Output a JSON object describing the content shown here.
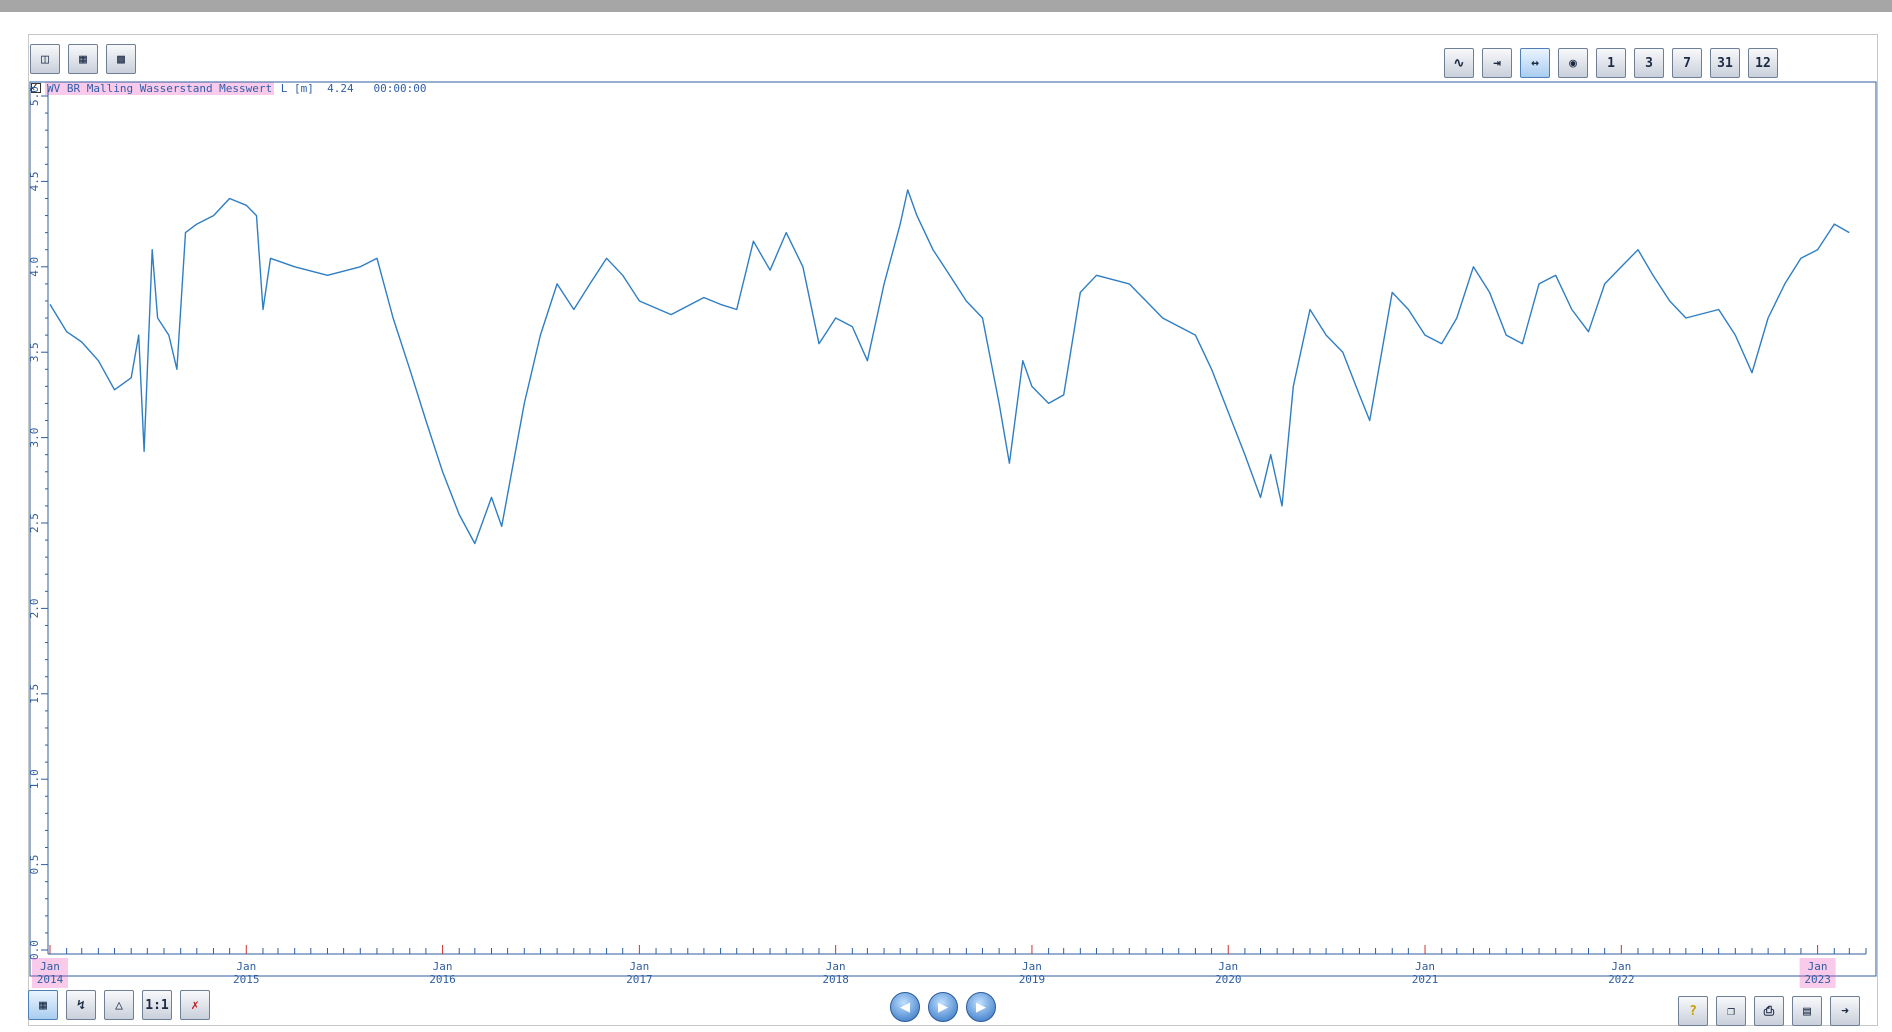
{
  "window": {
    "accent": "#2f7ec3"
  },
  "legend": {
    "checked": true,
    "series_label": "WV BR Malling Wasserstand Messwert",
    "unit": "L [m]",
    "value": "4.24",
    "time": "00:00:00"
  },
  "toolbar_top_left": [
    {
      "icon": "map-icon",
      "label": ""
    },
    {
      "icon": "chart-table-icon",
      "label": ""
    },
    {
      "icon": "chart-export-icon",
      "label": ""
    }
  ],
  "toolbar_top_right": [
    {
      "icon": "curve-icon",
      "label": ""
    },
    {
      "icon": "fit-width-icon",
      "label": ""
    },
    {
      "icon": "fit-all-icon",
      "label": ""
    },
    {
      "icon": "globe-icon",
      "label": ""
    },
    {
      "icon": "range-1-icon",
      "label": "1"
    },
    {
      "icon": "range-3-icon",
      "label": "3"
    },
    {
      "icon": "range-7-icon",
      "label": "7"
    },
    {
      "icon": "range-31-icon",
      "label": "31"
    },
    {
      "icon": "range-12-icon",
      "label": "12"
    }
  ],
  "toolbar_bottom_left": [
    {
      "icon": "grid-icon",
      "label": ""
    },
    {
      "icon": "cursor-icon",
      "label": ""
    },
    {
      "icon": "triangle-icon",
      "label": ""
    },
    {
      "icon": "scale-1to1-icon",
      "label": "1:1"
    },
    {
      "icon": "remove-series-icon",
      "label": ""
    }
  ],
  "nav_buttons": [
    {
      "icon": "prev-icon"
    },
    {
      "icon": "play-icon"
    },
    {
      "icon": "next-icon"
    }
  ],
  "toolbar_bottom_right": [
    {
      "icon": "help-icon",
      "label": "?"
    },
    {
      "icon": "copy-icon",
      "label": ""
    },
    {
      "icon": "print-icon",
      "label": ""
    },
    {
      "icon": "save-icon",
      "label": ""
    },
    {
      "icon": "exit-icon",
      "label": ""
    }
  ],
  "chart_data": {
    "type": "line",
    "title": "",
    "xlabel": "",
    "ylabel": "",
    "ylim": [
      0,
      5.0
    ],
    "xlim": [
      "2014-01-01",
      "2023-04-01"
    ],
    "y_ticks": [
      "0.0",
      "0.5",
      "1.0",
      "1.5",
      "2.0",
      "2.5",
      "3.0",
      "3.5",
      "4.0",
      "4.5",
      "5.0"
    ],
    "x_ticks": [
      {
        "month": "Jan",
        "year": "2014",
        "date": "2014-01-01"
      },
      {
        "month": "Jan",
        "year": "2015",
        "date": "2015-01-01"
      },
      {
        "month": "Jan",
        "year": "2016",
        "date": "2016-01-01"
      },
      {
        "month": "Jan",
        "year": "2017",
        "date": "2017-01-01"
      },
      {
        "month": "Jan",
        "year": "2018",
        "date": "2018-01-01"
      },
      {
        "month": "Jan",
        "year": "2019",
        "date": "2019-01-01"
      },
      {
        "month": "Jan",
        "year": "2020",
        "date": "2020-01-01"
      },
      {
        "month": "Jan",
        "year": "2021",
        "date": "2021-01-01"
      },
      {
        "month": "Jan",
        "year": "2022",
        "date": "2022-01-01"
      },
      {
        "month": "Jan",
        "year": "2023",
        "date": "2023-01-01"
      }
    ],
    "grid": false,
    "legend": "top-left",
    "series": [
      {
        "name": "WV BR Malling Wasserstand Messwert",
        "color": "#2f7ec3",
        "points": [
          [
            "2014-01-01",
            3.78
          ],
          [
            "2014-02-01",
            3.62
          ],
          [
            "2014-03-01",
            3.56
          ],
          [
            "2014-04-01",
            3.45
          ],
          [
            "2014-05-01",
            3.28
          ],
          [
            "2014-06-01",
            3.35
          ],
          [
            "2014-06-15",
            3.6
          ],
          [
            "2014-06-25",
            2.92
          ],
          [
            "2014-07-10",
            4.1
          ],
          [
            "2014-07-20",
            3.7
          ],
          [
            "2014-08-10",
            3.6
          ],
          [
            "2014-08-25",
            3.4
          ],
          [
            "2014-09-10",
            4.2
          ],
          [
            "2014-10-01",
            4.25
          ],
          [
            "2014-11-01",
            4.3
          ],
          [
            "2014-12-01",
            4.4
          ],
          [
            "2015-01-01",
            4.36
          ],
          [
            "2015-01-20",
            4.3
          ],
          [
            "2015-02-01",
            3.75
          ],
          [
            "2015-02-15",
            4.05
          ],
          [
            "2015-04-01",
            4.0
          ],
          [
            "2015-06-01",
            3.95
          ],
          [
            "2015-08-01",
            4.0
          ],
          [
            "2015-09-01",
            4.05
          ],
          [
            "2015-10-01",
            3.7
          ],
          [
            "2015-11-01",
            3.4
          ],
          [
            "2015-12-01",
            3.1
          ],
          [
            "2016-01-01",
            2.8
          ],
          [
            "2016-02-01",
            2.55
          ],
          [
            "2016-03-01",
            2.38
          ],
          [
            "2016-04-01",
            2.65
          ],
          [
            "2016-04-20",
            2.48
          ],
          [
            "2016-06-01",
            3.2
          ],
          [
            "2016-07-01",
            3.6
          ],
          [
            "2016-08-01",
            3.9
          ],
          [
            "2016-09-01",
            3.75
          ],
          [
            "2016-10-01",
            3.9
          ],
          [
            "2016-11-01",
            4.05
          ],
          [
            "2016-12-01",
            3.95
          ],
          [
            "2017-01-01",
            3.8
          ],
          [
            "2017-03-01",
            3.72
          ],
          [
            "2017-05-01",
            3.82
          ],
          [
            "2017-06-01",
            3.78
          ],
          [
            "2017-07-01",
            3.75
          ],
          [
            "2017-08-01",
            4.15
          ],
          [
            "2017-09-01",
            3.98
          ],
          [
            "2017-10-01",
            4.2
          ],
          [
            "2017-11-01",
            4.0
          ],
          [
            "2017-12-01",
            3.55
          ],
          [
            "2018-01-01",
            3.7
          ],
          [
            "2018-02-01",
            3.65
          ],
          [
            "2018-03-01",
            3.45
          ],
          [
            "2018-04-01",
            3.9
          ],
          [
            "2018-05-01",
            4.25
          ],
          [
            "2018-05-15",
            4.45
          ],
          [
            "2018-06-01",
            4.3
          ],
          [
            "2018-07-01",
            4.1
          ],
          [
            "2018-08-01",
            3.95
          ],
          [
            "2018-09-01",
            3.8
          ],
          [
            "2018-10-01",
            3.7
          ],
          [
            "2018-11-01",
            3.2
          ],
          [
            "2018-11-20",
            2.85
          ],
          [
            "2018-12-15",
            3.45
          ],
          [
            "2019-01-01",
            3.3
          ],
          [
            "2019-02-01",
            3.2
          ],
          [
            "2019-03-01",
            3.25
          ],
          [
            "2019-04-01",
            3.85
          ],
          [
            "2019-05-01",
            3.95
          ],
          [
            "2019-07-01",
            3.9
          ],
          [
            "2019-09-01",
            3.7
          ],
          [
            "2019-11-01",
            3.6
          ],
          [
            "2019-12-01",
            3.4
          ],
          [
            "2020-01-01",
            3.15
          ],
          [
            "2020-02-01",
            2.9
          ],
          [
            "2020-03-01",
            2.65
          ],
          [
            "2020-03-20",
            2.9
          ],
          [
            "2020-04-10",
            2.6
          ],
          [
            "2020-05-01",
            3.3
          ],
          [
            "2020-06-01",
            3.75
          ],
          [
            "2020-07-01",
            3.6
          ],
          [
            "2020-08-01",
            3.5
          ],
          [
            "2020-09-01",
            3.25
          ],
          [
            "2020-09-20",
            3.1
          ],
          [
            "2020-11-01",
            3.85
          ],
          [
            "2020-12-01",
            3.75
          ],
          [
            "2021-01-01",
            3.6
          ],
          [
            "2021-02-01",
            3.55
          ],
          [
            "2021-03-01",
            3.7
          ],
          [
            "2021-04-01",
            4.0
          ],
          [
            "2021-05-01",
            3.85
          ],
          [
            "2021-06-01",
            3.6
          ],
          [
            "2021-07-01",
            3.55
          ],
          [
            "2021-08-01",
            3.9
          ],
          [
            "2021-09-01",
            3.95
          ],
          [
            "2021-10-01",
            3.75
          ],
          [
            "2021-11-01",
            3.62
          ],
          [
            "2021-12-01",
            3.9
          ],
          [
            "2022-01-01",
            4.0
          ],
          [
            "2022-02-01",
            4.1
          ],
          [
            "2022-03-01",
            3.95
          ],
          [
            "2022-04-01",
            3.8
          ],
          [
            "2022-05-01",
            3.7
          ],
          [
            "2022-07-01",
            3.75
          ],
          [
            "2022-08-01",
            3.6
          ],
          [
            "2022-09-01",
            3.38
          ],
          [
            "2022-10-01",
            3.7
          ],
          [
            "2022-11-01",
            3.9
          ],
          [
            "2022-12-01",
            4.05
          ],
          [
            "2023-01-01",
            4.1
          ],
          [
            "2023-02-01",
            4.25
          ],
          [
            "2023-03-01",
            4.2
          ]
        ]
      }
    ]
  }
}
